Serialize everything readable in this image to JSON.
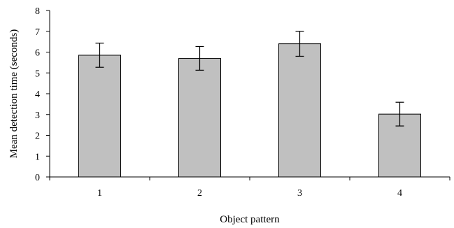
{
  "chart_data": {
    "type": "bar",
    "categories": [
      "1",
      "2",
      "3",
      "4"
    ],
    "values": [
      5.85,
      5.7,
      6.4,
      3.02
    ],
    "error": [
      0.58,
      0.57,
      0.6,
      0.57
    ],
    "title": "",
    "xlabel": "Object pattern",
    "ylabel": "Mean detection time (seconds)",
    "ylim": [
      0,
      8
    ],
    "yticks": [
      "0",
      "1",
      "2",
      "3",
      "4",
      "5",
      "6",
      "7",
      "8"
    ],
    "grid": false,
    "bar_color": "#c0c0c0",
    "bar_stroke": "#000000"
  }
}
